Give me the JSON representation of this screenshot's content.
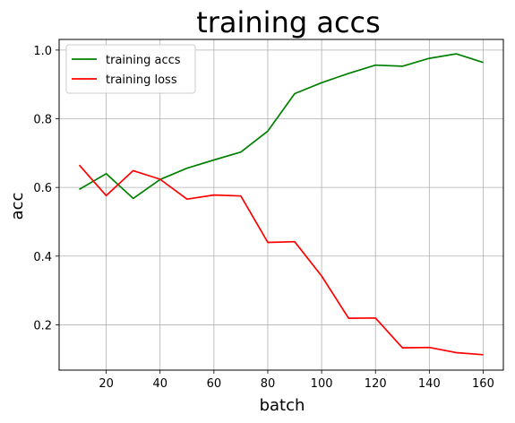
{
  "chart_data": {
    "type": "line",
    "title": "training accs",
    "xlabel": "batch",
    "ylabel": "acc",
    "xlim": [
      2.5,
      167.5
    ],
    "ylim": [
      0.068,
      1.031
    ],
    "xticks": [
      20,
      40,
      60,
      80,
      100,
      120,
      140,
      160
    ],
    "yticks": [
      0.2,
      0.4,
      0.6,
      0.8,
      1.0
    ],
    "xtick_labels": [
      "20",
      "40",
      "60",
      "80",
      "100",
      "120",
      "140",
      "160"
    ],
    "ytick_labels": [
      "0.2",
      "0.4",
      "0.6",
      "0.8",
      "1.0"
    ],
    "grid": true,
    "legend_position": "top-left",
    "x": [
      10,
      20,
      30,
      40,
      50,
      60,
      70,
      80,
      90,
      100,
      110,
      120,
      130,
      140,
      150,
      160
    ],
    "series": [
      {
        "name": "training accs",
        "color": "#008000",
        "values": [
          0.594,
          0.64,
          0.568,
          0.623,
          0.656,
          0.68,
          0.703,
          0.764,
          0.873,
          0.905,
          0.932,
          0.956,
          0.953,
          0.976,
          0.989,
          0.964
        ]
      },
      {
        "name": "training loss",
        "color": "#ff0000",
        "values": [
          0.665,
          0.576,
          0.649,
          0.624,
          0.566,
          0.578,
          0.575,
          0.44,
          0.442,
          0.342,
          0.219,
          0.22,
          0.133,
          0.134,
          0.119,
          0.113
        ]
      }
    ]
  }
}
